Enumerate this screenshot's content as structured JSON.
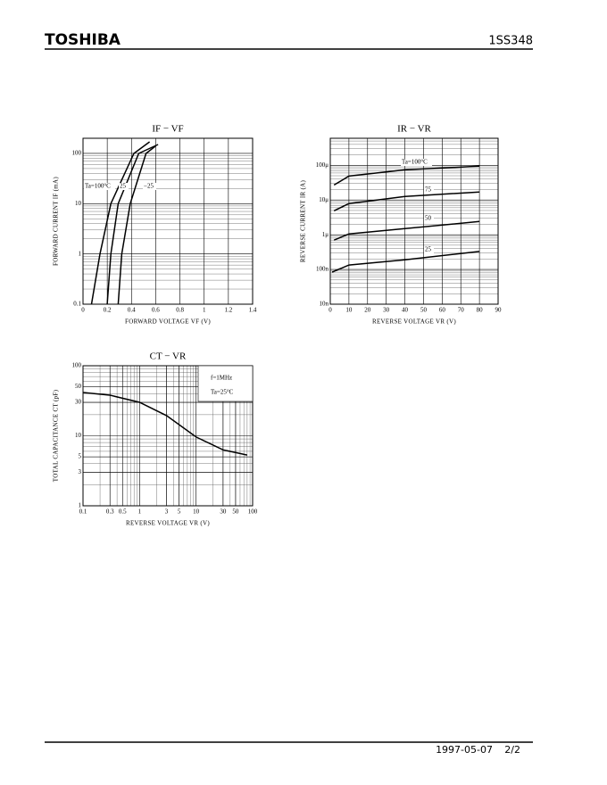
{
  "header": {
    "brand": "TOSHIBA",
    "part": "1SS348"
  },
  "footer": {
    "date": "1997-05-07",
    "page": "2/2"
  },
  "chart_data": [
    {
      "type": "line",
      "title": "IF − VF",
      "x_label": "FORWARD VOLTAGE  VF  (V)",
      "y_label": "FORWARD CURRENT  IF  (mA)",
      "xlim": [
        0,
        1.4
      ],
      "xticks": [
        0,
        0.2,
        0.4,
        0.6,
        0.8,
        1.0,
        1.2,
        1.4
      ],
      "ylim": [
        0.1,
        200
      ],
      "ylog": true,
      "yticks": [
        0.1,
        1,
        10,
        100
      ],
      "grid": true,
      "color": "#000000",
      "series": [
        {
          "name": "Ta=100°C",
          "x": [
            0.07,
            0.14,
            0.23,
            0.42,
            0.55
          ],
          "values": [
            0.1,
            1,
            10,
            100,
            170
          ]
        },
        {
          "name": "25",
          "x": [
            0.2,
            0.23,
            0.29,
            0.46,
            0.62
          ],
          "values": [
            0.1,
            1,
            10,
            100,
            150
          ]
        },
        {
          "name": "−25",
          "x": [
            0.29,
            0.32,
            0.39,
            0.52,
            0.6
          ],
          "values": [
            0.1,
            1,
            10,
            100,
            140
          ]
        }
      ]
    },
    {
      "type": "line",
      "title": "IR − VR",
      "x_label": "REVERSE VOLTAGE  VR  (V)",
      "y_label": "REVERSE CURRENT  IR  (A)",
      "xlim": [
        0,
        90
      ],
      "xticks": [
        0,
        10,
        20,
        30,
        40,
        50,
        60,
        70,
        80,
        90
      ],
      "ylim": [
        1e-08,
        0.0006
      ],
      "ylog": true,
      "yticks": [
        {
          "value": 1e-08,
          "label": "10n"
        },
        {
          "value": 1e-07,
          "label": "100n"
        },
        {
          "value": 1e-06,
          "label": "1μ"
        },
        {
          "value": 1e-05,
          "label": "10μ"
        },
        {
          "value": 0.0001,
          "label": "100μ"
        }
      ],
      "grid": true,
      "color": "#000000",
      "series": [
        {
          "name": "Ta=100°C",
          "x": [
            2,
            10,
            40,
            80
          ],
          "values": [
            2.7e-05,
            4.9e-05,
            7.4e-05,
            9.4e-05
          ]
        },
        {
          "name": "75",
          "x": [
            2,
            10,
            40,
            80
          ],
          "values": [
            4.9e-06,
            7.9e-06,
            1.26e-05,
            1.7e-05
          ]
        },
        {
          "name": "50",
          "x": [
            2,
            10,
            40,
            80
          ],
          "values": [
            7e-07,
            1.06e-06,
            1.5e-06,
            2.4e-06
          ]
        },
        {
          "name": "25",
          "x": [
            1,
            10,
            40,
            80
          ],
          "values": [
            8.4e-08,
            1.34e-07,
            1.9e-07,
            3.3e-07
          ]
        }
      ]
    },
    {
      "type": "line",
      "title": "CT − VR",
      "x_label": "REVERSE VOLTAGE  VR  (V)",
      "y_label": "TOTAL CAPACITANCE  CT  (pF)",
      "xlim": [
        0.1,
        100
      ],
      "xlog": true,
      "xticks": [
        0.1,
        0.3,
        0.5,
        1,
        3,
        5,
        10,
        30,
        50,
        100
      ],
      "ylim": [
        1,
        100
      ],
      "ylog": true,
      "yticks": [
        1,
        3,
        5,
        10,
        30,
        50,
        100
      ],
      "grid": true,
      "color": "#000000",
      "annotations": [
        "f=1MHz",
        "Ta=25°C"
      ],
      "series": [
        {
          "x": [
            0.1,
            0.3,
            1,
            3,
            10,
            30,
            80
          ],
          "values": [
            41.5,
            38,
            30,
            19.4,
            9.6,
            6.3,
            5.3
          ]
        }
      ]
    }
  ]
}
